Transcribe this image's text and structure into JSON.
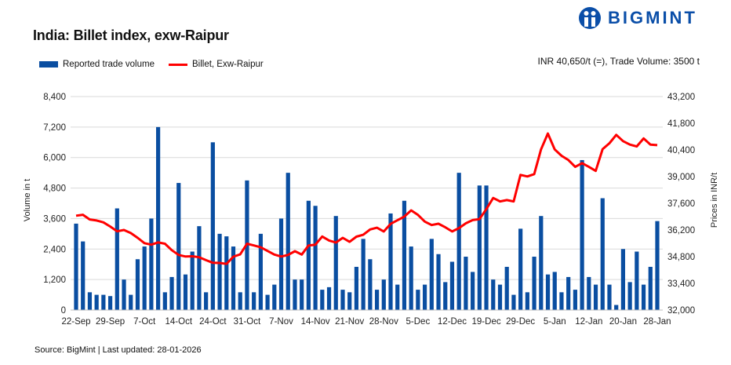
{
  "header": {
    "title": "India: Billet index, exw-Raipur",
    "logo_text": "BIGMINT",
    "info": "INR 40,650/t (=), Trade Volume: 3500 t"
  },
  "footer": {
    "source": "Source: BigMint | Last updated: 28-01-2026"
  },
  "colors": {
    "bar": "#0a4ea1",
    "line": "#ff0000",
    "grid": "#d9d9d9",
    "brand": "#0a4ea8"
  },
  "chart_data": {
    "type": "bar+line",
    "legend": {
      "placement": "top-left",
      "entries": [
        "Reported trade volume",
        "Billet, Exw-Raipur"
      ]
    },
    "ylabel": "Volume in t",
    "y2label": "Prices in INR/t",
    "ylim": [
      0,
      8400
    ],
    "y2lim": [
      32000,
      43200
    ],
    "y_ticks": [
      "0",
      "1,200",
      "2,400",
      "3,600",
      "4,800",
      "6,000",
      "7,200",
      "8,400"
    ],
    "y2_ticks": [
      "32,000",
      "33,400",
      "34,800",
      "36,200",
      "37,600",
      "39,000",
      "40,400",
      "41,800",
      "43,200"
    ],
    "grid": true,
    "x_tick_labels": [
      "22-Sep",
      "29-Sep",
      "7-Oct",
      "14-Oct",
      "24-Oct",
      "31-Oct",
      "7-Nov",
      "14-Nov",
      "21-Nov",
      "28-Nov",
      "5-Dec",
      "12-Dec",
      "19-Dec",
      "29-Dec",
      "5-Jan",
      "12-Jan",
      "20-Jan",
      "28-Jan"
    ],
    "series": [
      {
        "name": "Reported trade volume",
        "type": "bar",
        "axis": "left",
        "values": [
          3400,
          2700,
          700,
          600,
          600,
          550,
          4000,
          1200,
          600,
          2000,
          2500,
          3600,
          7200,
          700,
          1300,
          5000,
          1400,
          2300,
          3300,
          700,
          6600,
          3000,
          2900,
          2500,
          700,
          5100,
          700,
          3000,
          600,
          1000,
          3600,
          5400,
          1200,
          1200,
          4300,
          4100,
          800,
          900,
          3700,
          800,
          700,
          1700,
          2800,
          2000,
          800,
          1200,
          3800,
          1000,
          4300,
          2500,
          800,
          1000,
          2800,
          2200,
          1100,
          1900,
          5400,
          2100,
          1500,
          4900,
          4900,
          1200,
          1000,
          1700,
          600,
          3200,
          700,
          2100,
          3700,
          1400,
          1500,
          700,
          1300,
          800,
          5900,
          1300,
          1000,
          4400,
          1000,
          200,
          2400,
          1100,
          2300,
          1000,
          1700,
          3500
        ]
      },
      {
        "name": "Billet, Exw-Raipur",
        "type": "line",
        "axis": "right",
        "values": [
          36950,
          37000,
          36750,
          36700,
          36600,
          36380,
          36130,
          36200,
          36040,
          35790,
          35510,
          35430,
          35550,
          35480,
          35140,
          34890,
          34810,
          34820,
          34770,
          34620,
          34480,
          34470,
          34420,
          34800,
          34920,
          35480,
          35390,
          35290,
          35100,
          34910,
          34810,
          34890,
          35090,
          34910,
          35390,
          35430,
          35860,
          35650,
          35540,
          35790,
          35580,
          35850,
          35950,
          36230,
          36320,
          36120,
          36520,
          36710,
          36900,
          37230,
          36990,
          36640,
          36460,
          36530,
          36340,
          36120,
          36300,
          36550,
          36720,
          36770,
          37300,
          37880,
          37700,
          37770,
          37700,
          39090,
          39010,
          39130,
          40430,
          41260,
          40430,
          40090,
          39870,
          39510,
          39710,
          39510,
          39300,
          40440,
          40750,
          41190,
          40860,
          40680,
          40580,
          41000,
          40680,
          40650
        ]
      }
    ]
  }
}
